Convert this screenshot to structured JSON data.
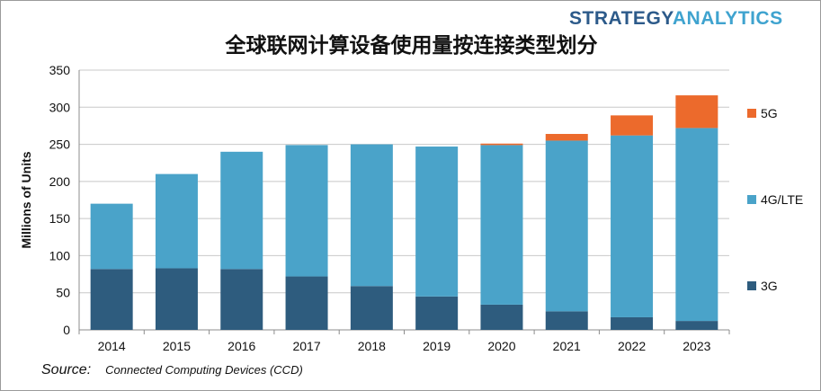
{
  "brand": {
    "part1": "STRATEGY",
    "part2": "ANALYTICS"
  },
  "source": {
    "label": "Source:",
    "text": "Connected Computing Devices (CCD)"
  },
  "colors": {
    "3G": "#2e5c7e",
    "4G/LTE": "#4aa3c9",
    "5G": "#ec6a2c",
    "grid": "#c8c8c8"
  },
  "chart_data": {
    "type": "bar",
    "stacked": true,
    "title": "全球联网计算设备使用量按连接类型划分",
    "xlabel": "",
    "ylabel": "Millions of Units",
    "ylim": [
      0,
      350
    ],
    "yticks": [
      0,
      50,
      100,
      150,
      200,
      250,
      300,
      350
    ],
    "grid": true,
    "legend_position": "right",
    "categories": [
      "2014",
      "2015",
      "2016",
      "2017",
      "2018",
      "2019",
      "2020",
      "2021",
      "2022",
      "2023"
    ],
    "series": [
      {
        "name": "3G",
        "values": [
          82,
          83,
          82,
          72,
          59,
          45,
          34,
          25,
          17,
          12
        ]
      },
      {
        "name": "4G/LTE",
        "values": [
          88,
          127,
          158,
          177,
          191,
          202,
          215,
          230,
          245,
          260
        ]
      },
      {
        "name": "5G",
        "values": [
          0,
          0,
          0,
          0,
          0,
          0,
          2,
          9,
          27,
          44
        ]
      }
    ]
  }
}
